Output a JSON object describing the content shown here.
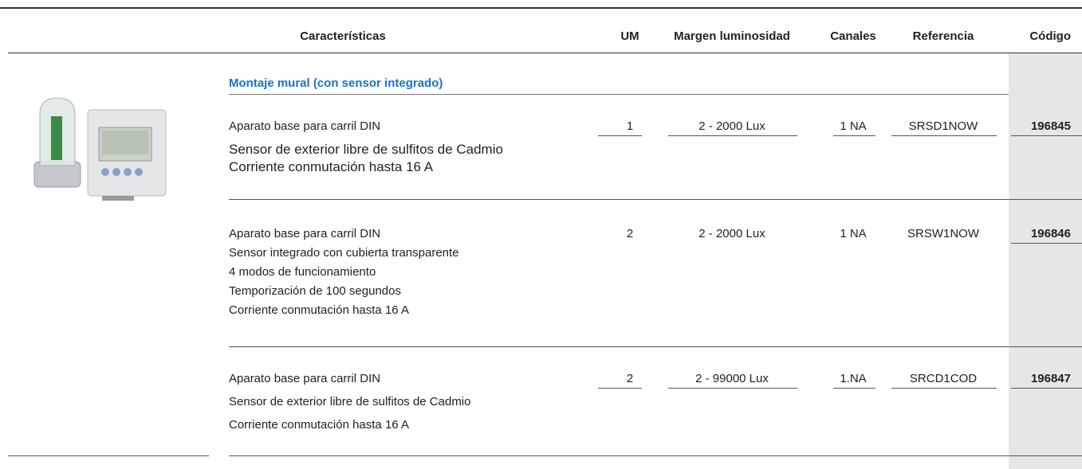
{
  "header": {
    "columns": [
      "Características",
      "UM",
      "Margen luminosidad",
      "Canales",
      "Referencia",
      "Código"
    ]
  },
  "section_title": "Montaje mural (con sensor integrado)",
  "rows": [
    {
      "lines": [
        "Aparato base para carril DIN",
        "Sensor de exterior libre de sulfitos de Cadmio",
        "Corriente conmutación hasta 16 A"
      ],
      "um": "1",
      "margin": "2 - 2000 Lux",
      "channels": "1 NA",
      "reference": "SRSD1NOW",
      "code": "196845"
    },
    {
      "lines": [
        "Aparato base para carril DIN",
        "Sensor integrado con cubierta transparente",
        "4 modos de funcionamiento",
        "Temporización de 100 segundos",
        "Corriente conmutación hasta 16 A"
      ],
      "um": "2",
      "margin": "2 - 2000 Lux",
      "channels": "1 NA",
      "reference": "SRSW1NOW",
      "code": "196846"
    },
    {
      "lines": [
        "Aparato base para carril DIN",
        "Sensor de exterior libre de sulfitos de Cadmio",
        "Corriente conmutación hasta 16 A"
      ],
      "um": "2",
      "margin": "2 - 99000 Lux",
      "channels": "1.NA",
      "reference": "SRCD1COD",
      "code": "196847"
    }
  ]
}
